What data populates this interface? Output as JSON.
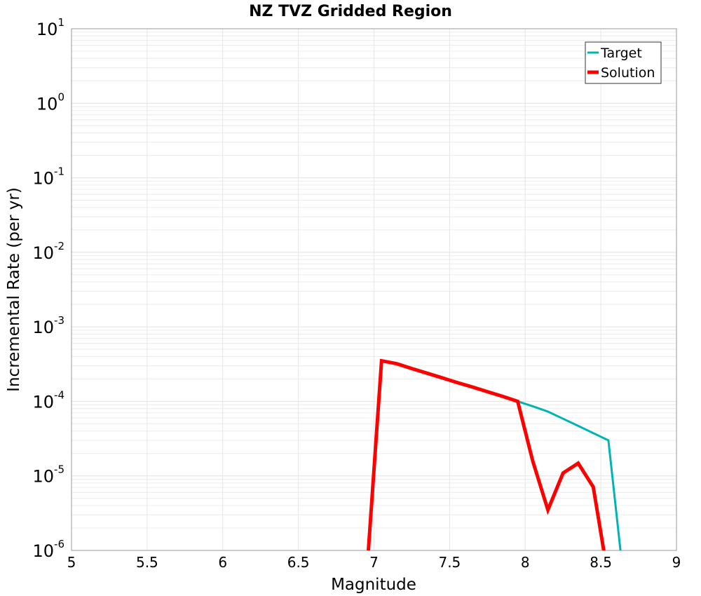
{
  "chart_data": {
    "type": "line",
    "title": "NZ TVZ Gridded Region",
    "xlabel": "Magnitude",
    "ylabel": "Incremental Rate (per yr)",
    "xlim": [
      5,
      9
    ],
    "ylim": [
      1e-06,
      10
    ],
    "yscale": "log",
    "grid": true,
    "legend_position": "top-right",
    "x_ticks": [
      "5",
      "5.5",
      "6",
      "6.5",
      "7",
      "7.5",
      "8",
      "8.5",
      "9"
    ],
    "y_ticks": [
      {
        "base": "10",
        "exp": "1"
      },
      {
        "base": "10",
        "exp": "0"
      },
      {
        "base": "10",
        "exp": "-1"
      },
      {
        "base": "10",
        "exp": "-2"
      },
      {
        "base": "10",
        "exp": "-3"
      },
      {
        "base": "10",
        "exp": "-4"
      },
      {
        "base": "10",
        "exp": "-5"
      },
      {
        "base": "10",
        "exp": "-6"
      }
    ],
    "series": [
      {
        "name": "Target",
        "color": "#00b4b4",
        "x": [
          6.95,
          7.05,
          7.15,
          7.25,
          7.35,
          7.45,
          7.55,
          7.65,
          7.75,
          7.85,
          7.95,
          8.05,
          8.15,
          8.25,
          8.35,
          8.45,
          8.55,
          8.65
        ],
        "y": [
          1e-08,
          0.00035,
          0.00032,
          0.000276,
          0.000239,
          0.000207,
          0.000179,
          0.000156,
          0.000135,
          0.000117,
          0.0001,
          8.6e-05,
          7.3e-05,
          5.85e-05,
          4.69e-05,
          3.75e-05,
          3e-05,
          1e-08
        ]
      },
      {
        "name": "Solution",
        "color": "#ff0000",
        "x": [
          6.95,
          7.05,
          7.15,
          7.25,
          7.35,
          7.45,
          7.55,
          7.65,
          7.75,
          7.85,
          7.95,
          8.05,
          8.15,
          8.25,
          8.35,
          8.45,
          8.55
        ],
        "y": [
          1e-08,
          0.00035,
          0.00032,
          0.000276,
          0.000239,
          0.000207,
          0.000179,
          0.000156,
          0.000135,
          0.000117,
          0.0001,
          1.58e-05,
          3.5e-06,
          1.09e-05,
          1.48e-05,
          7.1e-06,
          1e-08
        ]
      }
    ]
  }
}
